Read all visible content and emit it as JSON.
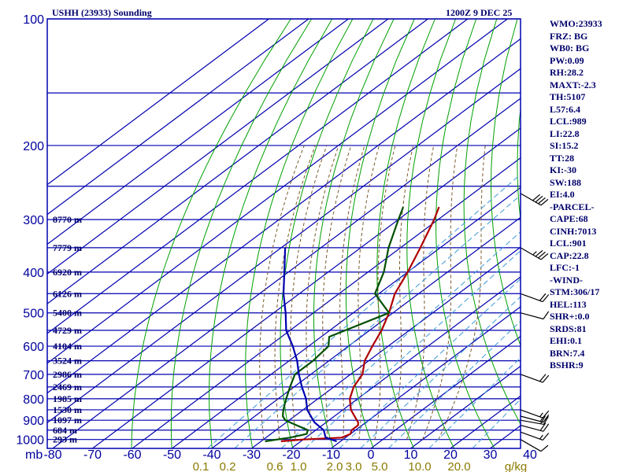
{
  "title": "USHH (23933) Sounding",
  "datetime": "1200Z  9 DEC 25",
  "indices": [
    "WMO:23933",
    "FRZ: BG",
    "WB0: BG",
    "PW:0.09",
    "RH:28.2",
    "MAXT:-2.3",
    "TH:5107",
    "L57:6.4",
    "LCL:989",
    "LI:22.8",
    "SI:15.2",
    "TT:28",
    "KI:-30",
    "SW:188",
    "EI:4.0",
    "-PARCEL-",
    "CAPE:68",
    "CINH:7013",
    "LCL:901",
    "CAP:22.8",
    "LFC:-1",
    "-WIND-",
    "STM:306/17",
    "HEL:113",
    "SHR+:0.0",
    "SRDS:81",
    "EHI:0.1",
    "BRN:7.4",
    "BSHR:9"
  ],
  "chart_data": {
    "type": "line",
    "title": "USHH (23933) Sounding",
    "pressure_levels_mb": [
      100,
      150,
      200,
      250,
      300,
      350,
      400,
      450,
      500,
      550,
      600,
      650,
      700,
      750,
      800,
      850,
      900,
      950,
      1000
    ],
    "pressure_tick_labels": [
      "100",
      "200",
      "300",
      "400",
      "500",
      "600",
      "700",
      "800",
      "900",
      "1000"
    ],
    "pressure_ticks_mb": [
      100,
      200,
      300,
      400,
      500,
      600,
      700,
      800,
      900,
      1000
    ],
    "xlim_c": [
      -80,
      40
    ],
    "x_ticks_c": [
      -80,
      -70,
      -60,
      -50,
      -40,
      -30,
      -20,
      -10,
      0,
      10,
      20,
      30,
      40
    ],
    "x_tick_labels": [
      "-80",
      "-70",
      "-60",
      "-50",
      "-40",
      "-30",
      "-20",
      "-10",
      "0",
      "10",
      "20",
      "30",
      "40"
    ],
    "x_corner_label": "mb",
    "mixing_ratio_labels": [
      "0.1",
      "0.2",
      "0.6",
      "1.0",
      "2.0",
      "3.0",
      "5.0",
      "10.0",
      "20.0",
      "g/kg"
    ],
    "height_labels": [
      {
        "p": 1000,
        "text": "293 m"
      },
      {
        "p": 950,
        "text": "684 m"
      },
      {
        "p": 900,
        "text": "1097 m"
      },
      {
        "p": 850,
        "text": "1530 m"
      },
      {
        "p": 800,
        "text": "1985 m"
      },
      {
        "p": 750,
        "text": "2469 m"
      },
      {
        "p": 700,
        "text": "2986 m"
      },
      {
        "p": 650,
        "text": "3524 m"
      },
      {
        "p": 600,
        "text": "4104 m"
      },
      {
        "p": 550,
        "text": "4729 m"
      },
      {
        "p": 500,
        "text": "5400 m"
      },
      {
        "p": 450,
        "text": "6126 m"
      },
      {
        "p": 400,
        "text": "6920 m"
      },
      {
        "p": 350,
        "text": "7779 m"
      },
      {
        "p": 300,
        "text": "8770 m"
      }
    ],
    "temperature": {
      "name": "Temperature",
      "color": "#b00000",
      "points": [
        [
          1010,
          -25
        ],
        [
          1000,
          -20
        ],
        [
          990,
          -11
        ],
        [
          970,
          -10
        ],
        [
          950,
          -11
        ],
        [
          925,
          -11
        ],
        [
          910,
          -12
        ],
        [
          900,
          -13
        ],
        [
          850,
          -18
        ],
        [
          800,
          -22
        ],
        [
          750,
          -25
        ],
        [
          700,
          -27
        ],
        [
          650,
          -31
        ],
        [
          600,
          -34
        ],
        [
          550,
          -37
        ],
        [
          500,
          -41
        ],
        [
          450,
          -46
        ],
        [
          400,
          -50
        ],
        [
          350,
          -55
        ],
        [
          300,
          -61
        ],
        [
          280,
          -64
        ]
      ]
    },
    "dewpoint": {
      "name": "Dewpoint",
      "color": "#005000",
      "points": [
        [
          1010,
          -29
        ],
        [
          990,
          -24
        ],
        [
          970,
          -21
        ],
        [
          950,
          -22
        ],
        [
          900,
          -31
        ],
        [
          880,
          -33
        ],
        [
          850,
          -35
        ],
        [
          800,
          -38
        ],
        [
          750,
          -41
        ],
        [
          700,
          -44
        ],
        [
          650,
          -44
        ],
        [
          600,
          -45
        ],
        [
          570,
          -48
        ],
        [
          500,
          -41
        ],
        [
          450,
          -51
        ],
        [
          400,
          -56
        ],
        [
          350,
          -63
        ],
        [
          300,
          -70
        ],
        [
          280,
          -73
        ]
      ]
    },
    "parcel": {
      "name": "Parcel",
      "color": "#0000b0",
      "points": [
        [
          1010,
          -11
        ],
        [
          990,
          -15
        ],
        [
          950,
          -18
        ],
        [
          910,
          -23
        ],
        [
          850,
          -29
        ],
        [
          800,
          -33
        ],
        [
          750,
          -38
        ],
        [
          700,
          -43
        ],
        [
          650,
          -48
        ],
        [
          600,
          -54
        ],
        [
          550,
          -61
        ],
        [
          500,
          -67
        ],
        [
          450,
          -74
        ],
        [
          400,
          -81
        ],
        [
          350,
          -89
        ]
      ]
    },
    "isotherms_c": [
      -170,
      -160,
      -150,
      -140,
      -130,
      -120,
      -110,
      -100,
      -90,
      -80,
      -70,
      -60,
      -50,
      -40,
      -30,
      -20,
      -10,
      0,
      10,
      20,
      30,
      40
    ],
    "dry_adiabats_theta_k": [
      210,
      220,
      230,
      240,
      250,
      260,
      270,
      280,
      290,
      300,
      310,
      320,
      330,
      340,
      350,
      360,
      370,
      380,
      390,
      400,
      410,
      420,
      430,
      440,
      450,
      460,
      470,
      480,
      490
    ],
    "moist_adiabats_c": [
      -30,
      -26,
      -22,
      -18,
      -14,
      -10,
      -6,
      -2,
      2,
      6,
      10,
      14
    ],
    "mixing_ratios_gkg": [
      0.1,
      0.2,
      0.6,
      1.0,
      2.0,
      3.0,
      5.0,
      10.0,
      20.0
    ],
    "winds": [
      {
        "p": 1000,
        "dir": 300,
        "kt": 10
      },
      {
        "p": 960,
        "dir": 290,
        "kt": 15
      },
      {
        "p": 925,
        "dir": 285,
        "kt": 20
      },
      {
        "p": 900,
        "dir": 280,
        "kt": 20
      },
      {
        "p": 880,
        "dir": 285,
        "kt": 15
      },
      {
        "p": 850,
        "dir": 290,
        "kt": 15
      },
      {
        "p": 700,
        "dir": 290,
        "kt": 20
      },
      {
        "p": 500,
        "dir": 285,
        "kt": 10
      },
      {
        "p": 450,
        "dir": 290,
        "kt": 20
      },
      {
        "p": 350,
        "dir": 300,
        "kt": 35
      },
      {
        "p": 260,
        "dir": 300,
        "kt": 40
      }
    ],
    "colors": {
      "grid": "#0000b0",
      "isotherm": "#0000b0",
      "dry_adiabat": "#00a000",
      "moist_adiabat": "#7a5a2a",
      "mixing_ratio": "#3a9ad8",
      "wind": "#000000",
      "temp_label": "#0000a0",
      "mix_label": "#8a7a00",
      "text": "#00006b"
    }
  }
}
